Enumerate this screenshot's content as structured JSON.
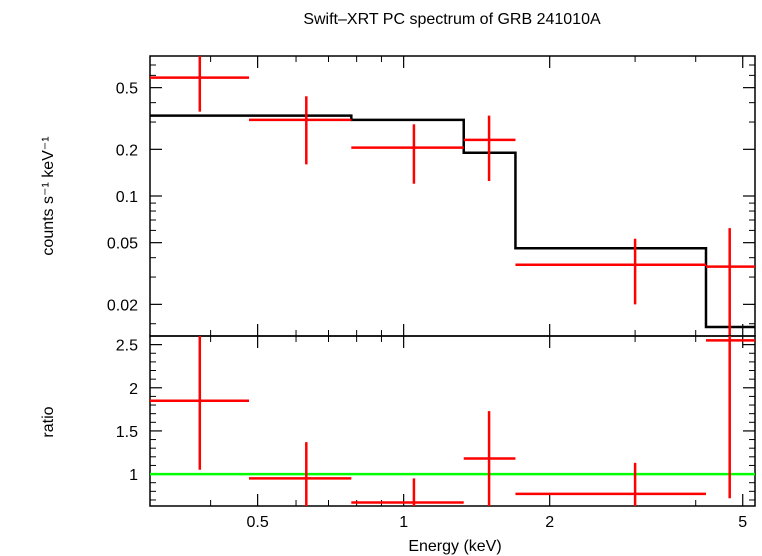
{
  "title": "Swift–XRT PC spectrum of GRB 241010A",
  "colors": {
    "data": "#ff0000",
    "model": "#000000",
    "unity": "#00ff00",
    "axes": "#000000"
  },
  "chart_data": [
    {
      "type": "line",
      "panel": "spectrum",
      "title": "Swift–XRT PC spectrum of GRB 241010A",
      "ylabel": "counts s⁻¹ keV⁻¹",
      "yscale": "log",
      "xscale": "log",
      "xlim": [
        0.3,
        5.3
      ],
      "ylim": [
        0.0125,
        0.8
      ],
      "yticks": [
        {
          "value": 0.5,
          "label": "0.5"
        },
        {
          "value": 0.2,
          "label": "0.2"
        },
        {
          "value": 0.1,
          "label": "0.1"
        },
        {
          "value": 0.05,
          "label": "0.05"
        },
        {
          "value": 0.02,
          "label": "0.02"
        }
      ],
      "data_points": [
        {
          "x": 0.38,
          "xlo": 0.3,
          "xhi": 0.48,
          "y": 0.58,
          "ylo": 0.35,
          "yhi": 0.8
        },
        {
          "x": 0.63,
          "xlo": 0.48,
          "xhi": 0.78,
          "y": 0.31,
          "ylo": 0.16,
          "yhi": 0.44
        },
        {
          "x": 1.05,
          "xlo": 0.78,
          "xhi": 1.33,
          "y": 0.205,
          "ylo": 0.12,
          "yhi": 0.29
        },
        {
          "x": 1.5,
          "xlo": 1.33,
          "xhi": 1.7,
          "y": 0.23,
          "ylo": 0.125,
          "yhi": 0.33
        },
        {
          "x": 3.0,
          "xlo": 1.7,
          "xhi": 4.2,
          "y": 0.036,
          "ylo": 0.02,
          "yhi": 0.053
        },
        {
          "x": 4.7,
          "xlo": 4.2,
          "xhi": 5.3,
          "y": 0.035,
          "ylo": 0.0125,
          "yhi": 0.062
        }
      ],
      "model_steps": [
        {
          "xlo": 0.3,
          "xhi": 0.78,
          "y": 0.33
        },
        {
          "xlo": 0.78,
          "xhi": 1.33,
          "y": 0.31
        },
        {
          "xlo": 1.33,
          "xhi": 1.7,
          "y": 0.19
        },
        {
          "xlo": 1.7,
          "xhi": 4.2,
          "y": 0.046
        },
        {
          "xlo": 4.2,
          "xhi": 5.3,
          "y": 0.0143
        }
      ]
    },
    {
      "type": "scatter",
      "panel": "ratio",
      "xlabel": "Energy (keV)",
      "ylabel": "ratio",
      "xscale": "log",
      "xlim": [
        0.3,
        5.3
      ],
      "ylim": [
        0.63,
        2.6
      ],
      "xticks": [
        {
          "value": 0.5,
          "label": "0.5"
        },
        {
          "value": 1,
          "label": "1"
        },
        {
          "value": 2,
          "label": "2"
        },
        {
          "value": 5,
          "label": "5"
        }
      ],
      "yticks": [
        {
          "value": 2.5,
          "label": "2.5"
        },
        {
          "value": 2,
          "label": "2"
        },
        {
          "value": 1.5,
          "label": "1.5"
        },
        {
          "value": 1,
          "label": "1"
        }
      ],
      "reference_line": 1,
      "data_points": [
        {
          "x": 0.38,
          "xlo": 0.3,
          "xhi": 0.48,
          "y": 1.85,
          "ylo": 1.05,
          "yhi": 2.6
        },
        {
          "x": 0.63,
          "xlo": 0.48,
          "xhi": 0.78,
          "y": 0.95,
          "ylo": 0.58,
          "yhi": 1.37
        },
        {
          "x": 1.05,
          "xlo": 0.78,
          "xhi": 1.33,
          "y": 0.67,
          "ylo": 0.58,
          "yhi": 0.95
        },
        {
          "x": 1.5,
          "xlo": 1.33,
          "xhi": 1.7,
          "y": 1.18,
          "ylo": 0.62,
          "yhi": 1.73
        },
        {
          "x": 3.0,
          "xlo": 1.7,
          "xhi": 4.2,
          "y": 0.77,
          "ylo": 0.58,
          "yhi": 1.13
        },
        {
          "x": 4.7,
          "xlo": 4.2,
          "xhi": 5.3,
          "y": 2.55,
          "ylo": 0.72,
          "yhi": 2.6
        }
      ]
    }
  ]
}
